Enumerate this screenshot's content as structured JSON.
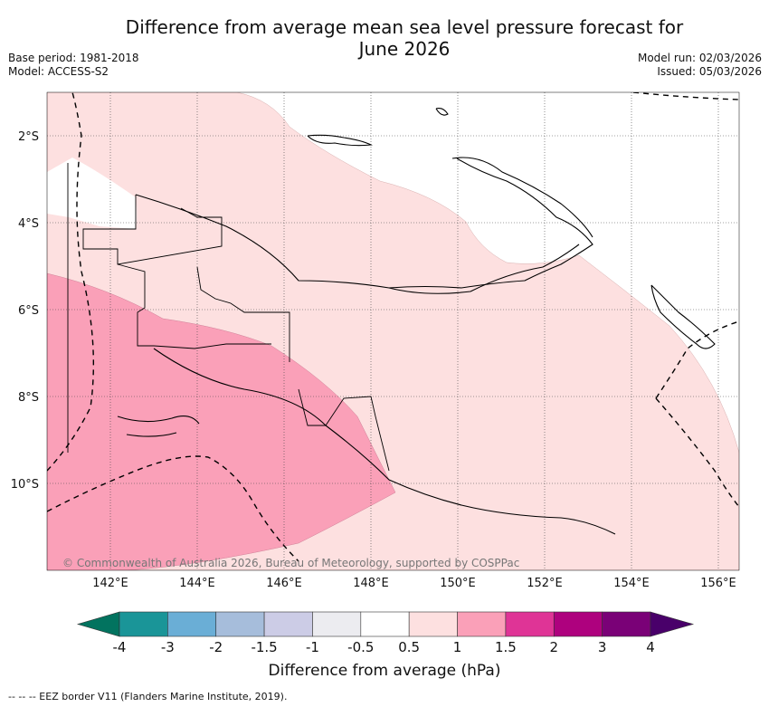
{
  "title_line1": "Difference from average mean sea level pressure forecast for",
  "title_line2": "June 2026",
  "meta_left": [
    "Base period: 1981-2018",
    "Model: ACCESS-S2"
  ],
  "meta_right": [
    "Model run: 02/03/2026",
    "Issued: 05/03/2026"
  ],
  "lat_labels": [
    "2°S",
    "4°S",
    "6°S",
    "8°S",
    "10°S"
  ],
  "lon_labels": [
    "142°E",
    "144°E",
    "146°E",
    "148°E",
    "150°E",
    "152°E",
    "154°E",
    "156°E"
  ],
  "copyright": "© Commonwealth of Australia 2026, Bureau of Meteorology, supported by COSPPac",
  "colorbar": {
    "ticks": [
      "-4",
      "-3",
      "-2",
      "-1.5",
      "-1",
      "-0.5",
      "0.5",
      "1",
      "1.5",
      "2",
      "3",
      "4"
    ],
    "colors": [
      "#1a9598",
      "#6aaed6",
      "#a6bddb",
      "#cccce6",
      "#ececf0",
      "#ffffff",
      "#fde0e0",
      "#faa0b8",
      "#df3496",
      "#ae017e",
      "#7a0177"
    ],
    "under_color": "#02735f",
    "over_color": "#49006a",
    "label": "Difference from average (hPa)"
  },
  "legend_footer": "--  --  -- EEZ border V11 (Flanders Marine Institute, 2019).",
  "colors": {
    "light_pink": "#fde0e0",
    "pink": "#faa0b8"
  }
}
